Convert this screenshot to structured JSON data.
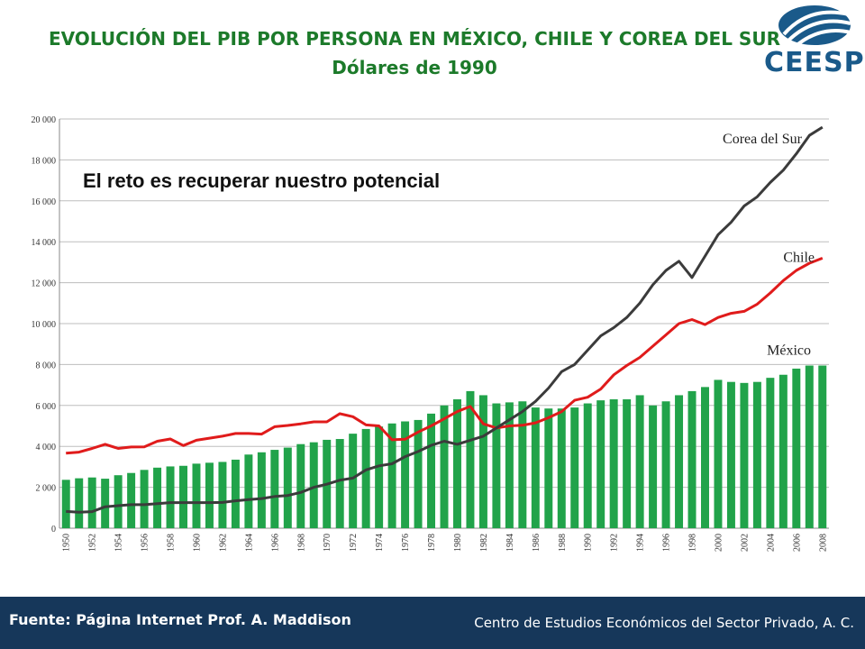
{
  "header": {
    "title": "EVOLUCIÓN DEL PIB POR PERSONA EN MÉXICO, CHILE Y COREA DEL SUR",
    "subtitle": "Dólares de 1990"
  },
  "logo": {
    "text": "CEESP"
  },
  "footer": {
    "source": "Fuente: Página Internet Prof. A. Maddison",
    "org": "Centro de Estudios Económicos del Sector Privado, A. C."
  },
  "colors": {
    "title_green": "#1c7a2a",
    "bar_green": "#21a34a",
    "chile_red": "#e01b1b",
    "korea_dark": "#3b3b3b",
    "footer_navy": "#16375a"
  },
  "chart_data": {
    "type": "bar+line",
    "annotation": "El reto es recuperar nuestro potencial",
    "ylim": [
      0,
      20000
    ],
    "yticks": [
      0,
      2000,
      4000,
      6000,
      8000,
      10000,
      12000,
      14000,
      16000,
      18000,
      20000
    ],
    "ytick_labels": [
      "0",
      "2 000",
      "4 000",
      "6 000",
      "8 000",
      "10 000",
      "12 000",
      "14 000",
      "16 000",
      "18 000",
      "20 000"
    ],
    "grid": true,
    "x": [
      1950,
      1951,
      1952,
      1953,
      1954,
      1955,
      1956,
      1957,
      1958,
      1959,
      1960,
      1961,
      1962,
      1963,
      1964,
      1965,
      1966,
      1967,
      1968,
      1969,
      1970,
      1971,
      1972,
      1973,
      1974,
      1975,
      1976,
      1977,
      1978,
      1979,
      1980,
      1981,
      1982,
      1983,
      1984,
      1985,
      1986,
      1987,
      1988,
      1989,
      1990,
      1991,
      1992,
      1993,
      1994,
      1995,
      1996,
      1997,
      1998,
      1999,
      2000,
      2001,
      2002,
      2003,
      2004,
      2005,
      2006,
      2007,
      2008
    ],
    "xtick_labels": [
      "1950",
      "1952",
      "1954",
      "1956",
      "1958",
      "1960",
      "1962",
      "1964",
      "1966",
      "1968",
      "1970",
      "1972",
      "1974",
      "1976",
      "1978",
      "1980",
      "1982",
      "1984",
      "1986",
      "1988",
      "1990",
      "1992",
      "1994",
      "1996",
      "1998",
      "2000",
      "2002",
      "2004",
      "2006",
      "2008"
    ],
    "series": [
      {
        "name": "México",
        "kind": "bar",
        "values": [
          2365,
          2440,
          2480,
          2420,
          2590,
          2700,
          2850,
          2960,
          3020,
          3050,
          3155,
          3200,
          3240,
          3350,
          3600,
          3710,
          3830,
          3940,
          4110,
          4200,
          4320,
          4360,
          4620,
          4850,
          4970,
          5120,
          5220,
          5290,
          5600,
          6000,
          6300,
          6700,
          6500,
          6100,
          6150,
          6200,
          5900,
          5850,
          5850,
          5900,
          6100,
          6250,
          6300,
          6300,
          6500,
          6000,
          6200,
          6500,
          6700,
          6900,
          7250,
          7150,
          7100,
          7150,
          7350,
          7500,
          7800,
          7950,
          7950
        ]
      },
      {
        "name": "Chile",
        "kind": "line",
        "values": [
          3670,
          3720,
          3900,
          4100,
          3900,
          3970,
          3980,
          4250,
          4360,
          4040,
          4300,
          4400,
          4500,
          4630,
          4630,
          4600,
          4960,
          5020,
          5100,
          5200,
          5200,
          5600,
          5450,
          5050,
          5000,
          4320,
          4350,
          4700,
          5000,
          5350,
          5700,
          5950,
          5100,
          4900,
          5000,
          5030,
          5150,
          5400,
          5700,
          6250,
          6400,
          6800,
          7500,
          7950,
          8350,
          8900,
          9450,
          10000,
          10200,
          9950,
          10300,
          10500,
          10600,
          10950,
          11500,
          12100,
          12600,
          12950,
          13200
        ]
      },
      {
        "name": "Corea del Sur",
        "kind": "line",
        "values": [
          820,
          780,
          810,
          1050,
          1100,
          1150,
          1150,
          1200,
          1250,
          1250,
          1250,
          1250,
          1260,
          1340,
          1400,
          1450,
          1550,
          1600,
          1750,
          2000,
          2150,
          2350,
          2450,
          2850,
          3050,
          3150,
          3500,
          3750,
          4050,
          4250,
          4100,
          4300,
          4500,
          4900,
          5300,
          5700,
          6200,
          6850,
          7650,
          8000,
          8700,
          9400,
          9800,
          10300,
          11000,
          11900,
          12600,
          13050,
          12250,
          13300,
          14350,
          14950,
          15750,
          16200,
          16900,
          17500,
          18300,
          19200,
          19600
        ]
      }
    ]
  }
}
